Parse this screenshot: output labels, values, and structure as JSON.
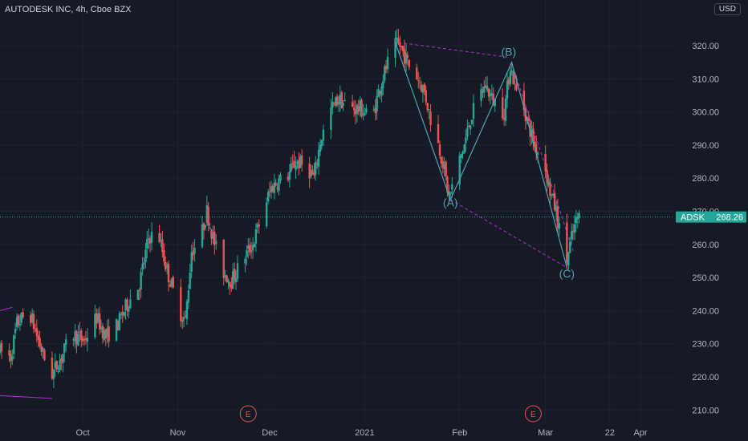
{
  "header": {
    "symbol_title": "AUTODESK INC, 4h, Cboe BZX",
    "currency": "USD"
  },
  "price_tag": {
    "symbol": "ADSK",
    "value": "268.26",
    "color": "#26a69a"
  },
  "colors": {
    "background": "#161a25",
    "grid": "#1f2330",
    "up": "#26a69a",
    "down": "#ef5350",
    "wave": "#4fa3b8",
    "trendline": "#b02fd0",
    "earnings": "#ef5350"
  },
  "chart_data": {
    "type": "candlestick",
    "ylim": [
      205,
      326
    ],
    "y_ticks": [
      "320.00",
      "310.00",
      "300.00",
      "290.00",
      "280.00",
      "270.00",
      "260.00",
      "250.00",
      "240.00",
      "230.00",
      "220.00",
      "210.00"
    ],
    "x_tick_labels": [
      "Oct",
      "Nov",
      "Dec",
      "2021",
      "Feb",
      "Mar",
      "22",
      "Apr"
    ],
    "x_ticks": [
      "2020-10-01",
      "2020-11-01",
      "2020-12-01",
      "2021-01-01",
      "2021-02-01",
      "2021-03-01",
      "2021-03-22",
      "2021-04-01"
    ],
    "xlim": [
      "2020-09-04",
      "2021-04-12"
    ],
    "last_price": 268.26,
    "price_path": [
      [
        "2020-09-04",
        228
      ],
      [
        "2020-09-08",
        226
      ],
      [
        "2020-09-10",
        236
      ],
      [
        "2020-09-14",
        240
      ],
      [
        "2020-09-17",
        231
      ],
      [
        "2020-09-21",
        220
      ],
      [
        "2020-09-24",
        225
      ],
      [
        "2020-09-28",
        233
      ],
      [
        "2020-10-02",
        231
      ],
      [
        "2020-10-06",
        238
      ],
      [
        "2020-10-09",
        232
      ],
      [
        "2020-10-13",
        236
      ],
      [
        "2020-10-16",
        242
      ],
      [
        "2020-10-20",
        248
      ],
      [
        "2020-10-23",
        262
      ],
      [
        "2020-10-26",
        264
      ],
      [
        "2020-10-29",
        252
      ],
      [
        "2020-11-02",
        240
      ],
      [
        "2020-11-04",
        237
      ],
      [
        "2020-11-06",
        258
      ],
      [
        "2020-11-09",
        262
      ],
      [
        "2020-11-11",
        270
      ],
      [
        "2020-11-13",
        262
      ],
      [
        "2020-11-16",
        252
      ],
      [
        "2020-11-19",
        249
      ],
      [
        "2020-11-23",
        256
      ],
      [
        "2020-11-26",
        260
      ],
      [
        "2020-11-30",
        272
      ],
      [
        "2020-12-02",
        277
      ],
      [
        "2020-12-04",
        279
      ],
      [
        "2020-12-07",
        280
      ],
      [
        "2020-12-10",
        285
      ],
      [
        "2020-12-14",
        283
      ],
      [
        "2020-12-16",
        280
      ],
      [
        "2020-12-18",
        291
      ],
      [
        "2020-12-21",
        300
      ],
      [
        "2020-12-24",
        304
      ],
      [
        "2020-12-28",
        301
      ],
      [
        "2020-12-31",
        301
      ],
      [
        "2021-01-04",
        298
      ],
      [
        "2021-01-06",
        306
      ],
      [
        "2021-01-08",
        312
      ],
      [
        "2021-01-11",
        320
      ],
      [
        "2021-01-13",
        320
      ],
      [
        "2021-01-16",
        314
      ],
      [
        "2021-01-19",
        310
      ],
      [
        "2021-01-21",
        306
      ],
      [
        "2021-01-23",
        298
      ],
      [
        "2021-01-25",
        292
      ],
      [
        "2021-01-27",
        285
      ],
      [
        "2021-01-29",
        274
      ],
      [
        "2021-02-01",
        284
      ],
      [
        "2021-02-03",
        290
      ],
      [
        "2021-02-05",
        298
      ],
      [
        "2021-02-08",
        305
      ],
      [
        "2021-02-10",
        308
      ],
      [
        "2021-02-12",
        304
      ],
      [
        "2021-02-16",
        300
      ],
      [
        "2021-02-18",
        314
      ],
      [
        "2021-02-20",
        306
      ],
      [
        "2021-02-22",
        303
      ],
      [
        "2021-02-24",
        296
      ],
      [
        "2021-02-26",
        290
      ],
      [
        "2021-03-01",
        285
      ],
      [
        "2021-03-03",
        276
      ],
      [
        "2021-03-05",
        270
      ],
      [
        "2021-03-08",
        253
      ],
      [
        "2021-03-10",
        262
      ],
      [
        "2021-03-12",
        268.26
      ]
    ],
    "annotations": {
      "wave_labels": [
        {
          "text": "(A)",
          "date": "2021-01-29",
          "price": 271.5
        },
        {
          "text": "(B)",
          "date": "2021-02-17",
          "price": 317
        },
        {
          "text": "(C)",
          "date": "2021-03-08",
          "price": 250
        }
      ],
      "wave_path": [
        [
          "2021-01-11",
          321
        ],
        [
          "2021-01-29",
          273.5
        ],
        [
          "2021-02-18",
          315
        ],
        [
          "2021-03-08",
          253
        ]
      ],
      "trendlines": [
        {
          "style": "dashed",
          "points": [
            [
              "2021-01-12",
              321
            ],
            [
              "2021-02-17",
              316.5
            ]
          ]
        },
        {
          "style": "dashed",
          "points": [
            [
              "2021-01-29",
              273.5
            ],
            [
              "2021-03-08",
              253
            ]
          ]
        },
        {
          "style": "dashed",
          "points": [
            [
              "2021-02-19",
              312
            ],
            [
              "2021-03-10",
              258
            ]
          ]
        },
        {
          "style": "solid",
          "points": [
            [
              "2020-09-04",
              240
            ],
            [
              "2020-09-08",
              241
            ]
          ]
        },
        {
          "style": "solid",
          "points": [
            [
              "2020-09-01",
              214.5
            ],
            [
              "2020-09-21",
              213.5
            ]
          ]
        }
      ],
      "earnings_markers": [
        {
          "text": "E",
          "date": "2020-11-24"
        },
        {
          "text": "E",
          "date": "2021-02-25"
        }
      ]
    }
  }
}
